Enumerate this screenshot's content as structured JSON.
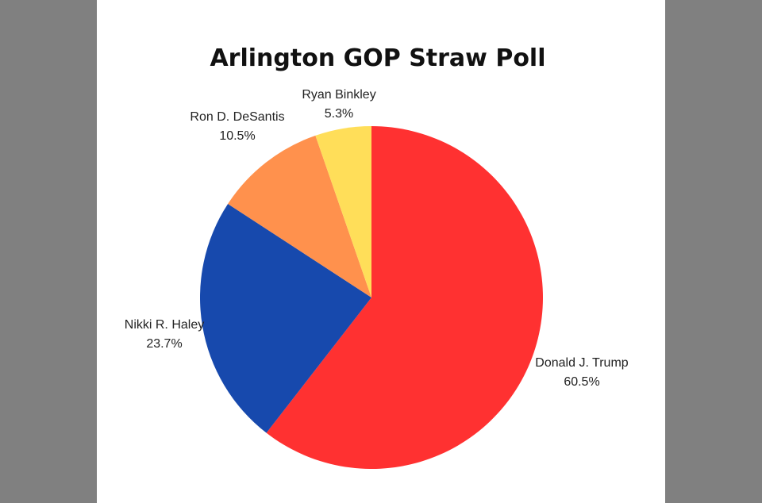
{
  "chart_data": {
    "type": "pie",
    "title": "Arlington GOP Straw Poll",
    "slices": [
      {
        "name": "Donald J. Trump",
        "value": 60.5,
        "label": "60.5%",
        "color": "#ff3131"
      },
      {
        "name": "Nikki R. Haley",
        "value": 23.7,
        "label": "23.7%",
        "color": "#1749ad"
      },
      {
        "name": "Ron D. DeSantis",
        "value": 10.5,
        "label": "10.5%",
        "color": "#ff914d"
      },
      {
        "name": "Ryan Binkley",
        "value": 5.3,
        "label": "5.3%",
        "color": "#ffde59"
      }
    ],
    "start": "top",
    "direction": "clockwise",
    "legend": "none"
  },
  "colors": {
    "side_bars": "#808080",
    "background": "#ffffff"
  }
}
